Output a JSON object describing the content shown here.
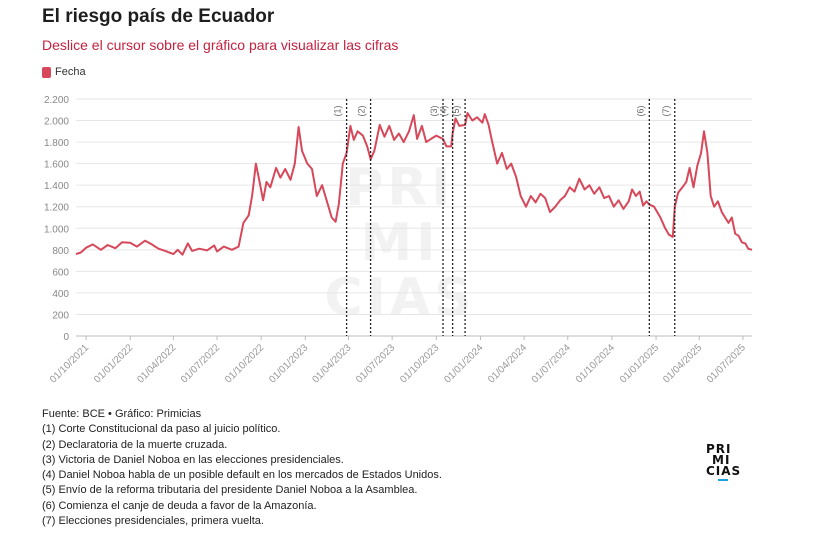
{
  "header": {
    "title": "El riesgo país de Ecuador",
    "subtitle": "Deslice el cursor sobre el gráfico para visualizar las cifras"
  },
  "legend": {
    "label": "Fecha",
    "color": "#d6485a"
  },
  "watermark_lines": [
    "PRI",
    "MI",
    "CIAS"
  ],
  "footer": {
    "source": "Fuente: BCE • Gráfico: Primicias",
    "notes": [
      "(1) Corte Constitucional da paso al juicio político.",
      "(2) Declaratoria de la muerte cruzada.",
      "(3) Victoria de Daniel Noboa en las elecciones presidenciales.",
      "(4) Daniel Noboa habla de un posible default en los mercados de Estados Unidos.",
      "(5) Envío de la reforma tributaria del presidente Daniel Noboa a la Asamblea.",
      "(6) Comienza el canje de deuda a favor de la Amazonía.",
      "(7) Elecciones presidenciales, primera vuelta."
    ]
  },
  "brand": {
    "line1": "PRI",
    "line2": "MI",
    "line3": "CIAS"
  },
  "chart_data": {
    "type": "line",
    "title": "El riesgo país de Ecuador",
    "xlabel": "",
    "ylabel": "",
    "line_color": "#d6485a",
    "ylim": [
      0,
      2200
    ],
    "y_ticks": [
      0,
      200,
      400,
      600,
      800,
      1000,
      1200,
      1400,
      1600,
      1800,
      2000,
      2200
    ],
    "y_tick_labels": [
      "0",
      "200",
      "400",
      "600",
      "800",
      "1.000",
      "1.200",
      "1.400",
      "1.600",
      "1.800",
      "2.000",
      "2.200"
    ],
    "x_range": [
      "2021-09-10",
      "2025-07-20"
    ],
    "x_ticks": [
      "2021-10-01",
      "2022-01-01",
      "2022-04-01",
      "2022-07-01",
      "2022-10-01",
      "2023-01-01",
      "2023-04-01",
      "2023-07-01",
      "2023-10-01",
      "2024-01-01",
      "2024-04-01",
      "2024-07-01",
      "2024-10-01",
      "2025-01-01",
      "2025-04-01",
      "2025-07-01"
    ],
    "x_tick_labels": [
      "01/10/2021",
      "01/01/2022",
      "01/04/2022",
      "01/07/2022",
      "01/10/2022",
      "01/01/2023",
      "01/04/2023",
      "01/07/2023",
      "01/10/2023",
      "01/01/2024",
      "01/04/2024",
      "01/07/2024",
      "01/10/2024",
      "01/01/2025",
      "01/04/2025",
      "01/07/2025"
    ],
    "grid": true,
    "annotations": [
      {
        "label": "(1)",
        "date": "2023-03-28"
      },
      {
        "label": "(2)",
        "date": "2023-05-17"
      },
      {
        "label": "(3)",
        "date": "2023-10-15"
      },
      {
        "label": "(4)",
        "date": "2023-11-04"
      },
      {
        "label": "(5)",
        "date": "2023-11-30"
      },
      {
        "label": "(6)",
        "date": "2024-12-18"
      },
      {
        "label": "(7)",
        "date": "2025-02-09"
      }
    ],
    "series": [
      {
        "points": [
          [
            "2021-09-10",
            760
          ],
          [
            "2021-09-20",
            775
          ],
          [
            "2021-10-01",
            820
          ],
          [
            "2021-10-15",
            850
          ],
          [
            "2021-11-01",
            800
          ],
          [
            "2021-11-15",
            845
          ],
          [
            "2021-12-01",
            815
          ],
          [
            "2021-12-15",
            870
          ],
          [
            "2022-01-01",
            865
          ],
          [
            "2022-01-15",
            830
          ],
          [
            "2022-02-01",
            885
          ],
          [
            "2022-02-15",
            850
          ],
          [
            "2022-03-01",
            810
          ],
          [
            "2022-03-15",
            790
          ],
          [
            "2022-04-01",
            760
          ],
          [
            "2022-04-10",
            800
          ],
          [
            "2022-04-20",
            755
          ],
          [
            "2022-05-01",
            860
          ],
          [
            "2022-05-10",
            790
          ],
          [
            "2022-05-25",
            810
          ],
          [
            "2022-06-10",
            795
          ],
          [
            "2022-06-25",
            840
          ],
          [
            "2022-07-01",
            785
          ],
          [
            "2022-07-15",
            830
          ],
          [
            "2022-08-01",
            800
          ],
          [
            "2022-08-15",
            830
          ],
          [
            "2022-08-25",
            1050
          ],
          [
            "2022-09-05",
            1120
          ],
          [
            "2022-09-12",
            1300
          ],
          [
            "2022-09-20",
            1600
          ],
          [
            "2022-09-28",
            1420
          ],
          [
            "2022-10-05",
            1260
          ],
          [
            "2022-10-12",
            1430
          ],
          [
            "2022-10-20",
            1380
          ],
          [
            "2022-11-01",
            1560
          ],
          [
            "2022-11-10",
            1470
          ],
          [
            "2022-11-20",
            1550
          ],
          [
            "2022-12-01",
            1450
          ],
          [
            "2022-12-10",
            1600
          ],
          [
            "2022-12-18",
            1940
          ],
          [
            "2022-12-25",
            1720
          ],
          [
            "2023-01-05",
            1600
          ],
          [
            "2023-01-15",
            1550
          ],
          [
            "2023-01-25",
            1300
          ],
          [
            "2023-02-05",
            1400
          ],
          [
            "2023-02-15",
            1250
          ],
          [
            "2023-02-25",
            1100
          ],
          [
            "2023-03-05",
            1060
          ],
          [
            "2023-03-12",
            1230
          ],
          [
            "2023-03-20",
            1600
          ],
          [
            "2023-03-28",
            1700
          ],
          [
            "2023-04-05",
            1950
          ],
          [
            "2023-04-12",
            1820
          ],
          [
            "2023-04-20",
            1900
          ],
          [
            "2023-05-01",
            1860
          ],
          [
            "2023-05-10",
            1760
          ],
          [
            "2023-05-17",
            1640
          ],
          [
            "2023-05-25",
            1720
          ],
          [
            "2023-06-05",
            1960
          ],
          [
            "2023-06-15",
            1850
          ],
          [
            "2023-06-25",
            1950
          ],
          [
            "2023-07-05",
            1820
          ],
          [
            "2023-07-15",
            1880
          ],
          [
            "2023-07-25",
            1800
          ],
          [
            "2023-08-05",
            1900
          ],
          [
            "2023-08-15",
            2050
          ],
          [
            "2023-08-22",
            1830
          ],
          [
            "2023-09-01",
            1950
          ],
          [
            "2023-09-10",
            1800
          ],
          [
            "2023-09-20",
            1830
          ],
          [
            "2023-10-01",
            1860
          ],
          [
            "2023-10-10",
            1840
          ],
          [
            "2023-10-15",
            1830
          ],
          [
            "2023-10-22",
            1760
          ],
          [
            "2023-11-01",
            1760
          ],
          [
            "2023-11-04",
            1880
          ],
          [
            "2023-11-10",
            2020
          ],
          [
            "2023-11-18",
            1950
          ],
          [
            "2023-11-30",
            1960
          ],
          [
            "2023-12-05",
            2070
          ],
          [
            "2023-12-15",
            2000
          ],
          [
            "2023-12-25",
            2030
          ],
          [
            "2024-01-05",
            1980
          ],
          [
            "2024-01-10",
            2060
          ],
          [
            "2024-01-18",
            1960
          ],
          [
            "2024-01-25",
            1810
          ],
          [
            "2024-02-05",
            1600
          ],
          [
            "2024-02-15",
            1700
          ],
          [
            "2024-02-25",
            1550
          ],
          [
            "2024-03-05",
            1600
          ],
          [
            "2024-03-15",
            1480
          ],
          [
            "2024-03-25",
            1300
          ],
          [
            "2024-04-05",
            1200
          ],
          [
            "2024-04-15",
            1300
          ],
          [
            "2024-04-25",
            1240
          ],
          [
            "2024-05-05",
            1320
          ],
          [
            "2024-05-15",
            1280
          ],
          [
            "2024-05-25",
            1150
          ],
          [
            "2024-06-05",
            1200
          ],
          [
            "2024-06-15",
            1260
          ],
          [
            "2024-06-25",
            1300
          ],
          [
            "2024-07-05",
            1380
          ],
          [
            "2024-07-15",
            1340
          ],
          [
            "2024-07-25",
            1460
          ],
          [
            "2024-08-05",
            1360
          ],
          [
            "2024-08-15",
            1400
          ],
          [
            "2024-08-25",
            1320
          ],
          [
            "2024-09-05",
            1380
          ],
          [
            "2024-09-15",
            1280
          ],
          [
            "2024-09-25",
            1300
          ],
          [
            "2024-10-05",
            1200
          ],
          [
            "2024-10-15",
            1260
          ],
          [
            "2024-10-25",
            1180
          ],
          [
            "2024-11-05",
            1250
          ],
          [
            "2024-11-12",
            1360
          ],
          [
            "2024-11-20",
            1300
          ],
          [
            "2024-11-28",
            1340
          ],
          [
            "2024-12-05",
            1210
          ],
          [
            "2024-12-12",
            1250
          ],
          [
            "2024-12-18",
            1220
          ],
          [
            "2024-12-28",
            1200
          ],
          [
            "2025-01-10",
            1100
          ],
          [
            "2025-01-20",
            1000
          ],
          [
            "2025-01-28",
            940
          ],
          [
            "2025-02-05",
            920
          ],
          [
            "2025-02-09",
            1200
          ],
          [
            "2025-02-16",
            1330
          ],
          [
            "2025-02-25",
            1380
          ],
          [
            "2025-03-05",
            1430
          ],
          [
            "2025-03-12",
            1560
          ],
          [
            "2025-03-20",
            1380
          ],
          [
            "2025-03-28",
            1580
          ],
          [
            "2025-04-05",
            1700
          ],
          [
            "2025-04-11",
            1900
          ],
          [
            "2025-04-18",
            1700
          ],
          [
            "2025-04-25",
            1300
          ],
          [
            "2025-05-02",
            1200
          ],
          [
            "2025-05-10",
            1250
          ],
          [
            "2025-05-18",
            1150
          ],
          [
            "2025-05-25",
            1100
          ],
          [
            "2025-06-01",
            1050
          ],
          [
            "2025-06-08",
            1100
          ],
          [
            "2025-06-15",
            950
          ],
          [
            "2025-06-22",
            930
          ],
          [
            "2025-06-29",
            870
          ],
          [
            "2025-07-06",
            860
          ],
          [
            "2025-07-12",
            810
          ],
          [
            "2025-07-20",
            800
          ]
        ]
      }
    ]
  }
}
